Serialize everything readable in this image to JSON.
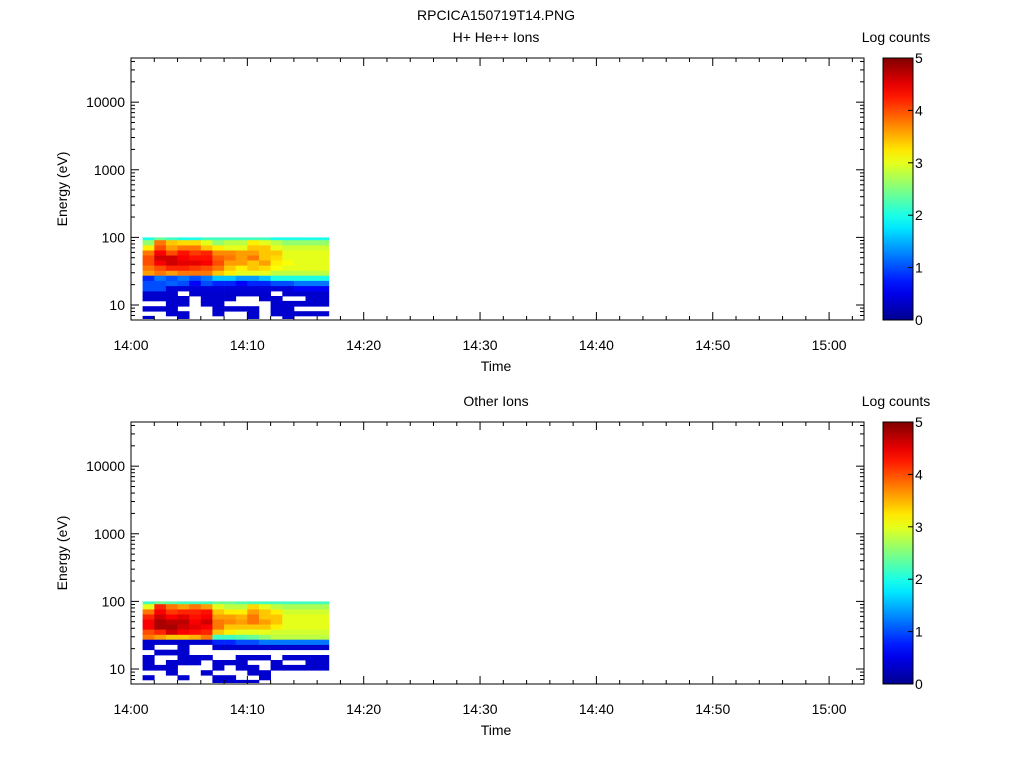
{
  "figure_title": "RPCICA150719T14.PNG",
  "colors": {
    "colormap": [
      "#00008f",
      "#0000ff",
      "#0080ff",
      "#00ffff",
      "#80ff80",
      "#ffff00",
      "#ff8000",
      "#ff0000",
      "#800000"
    ],
    "background": "#ffffff"
  },
  "chart_data": [
    {
      "type": "heatmap",
      "title": "H+ He++ Ions",
      "xlabel": "Time",
      "ylabel": "Energy (eV)",
      "colorbar_label": "Log counts",
      "x_tick_labels": [
        "14:00",
        "14:10",
        "14:20",
        "14:30",
        "14:40",
        "14:50",
        "15:00"
      ],
      "y_tick_labels": [
        "10",
        "100",
        "1000",
        "10000"
      ],
      "colorbar_tick_labels": [
        "0",
        "1",
        "2",
        "3",
        "4",
        "5"
      ],
      "xlim": [
        "14:00",
        "15:03"
      ],
      "ylim": [
        6,
        45000
      ],
      "y_scale": "log",
      "colorbar_range": [
        0,
        5
      ],
      "grid": false,
      "time_bins": [
        "14:01",
        "14:02",
        "14:03",
        "14:04",
        "14:05",
        "14:06",
        "14:07",
        "14:08",
        "14:09",
        "14:10",
        "14:11",
        "14:12",
        "14:13",
        "14:14",
        "14:15",
        "14:16"
      ],
      "energy_bins": [
        6.3,
        6.9,
        8.1,
        9.6,
        11.5,
        13.6,
        16.1,
        19.3,
        23,
        27.5,
        32.5,
        38.8,
        46.2,
        54.6,
        65,
        77,
        92,
        100
      ],
      "log_counts": [
        [
          0.35,
          null,
          null,
          0.35,
          null,
          null,
          null,
          null,
          null,
          0.35,
          null,
          null,
          0.35,
          null,
          null,
          null
        ],
        [
          null,
          null,
          0.35,
          0.35,
          null,
          null,
          0.35,
          null,
          null,
          0.35,
          null,
          0.35,
          0.35,
          0.35,
          0.35,
          0.35
        ],
        [
          0.35,
          0.35,
          0.35,
          null,
          null,
          null,
          0.35,
          0.35,
          0.35,
          0.35,
          null,
          0.35,
          0.35,
          null,
          null,
          null
        ],
        [
          null,
          null,
          0.35,
          0.35,
          null,
          0.35,
          0.35,
          null,
          null,
          null,
          null,
          0.35,
          0.35,
          0.35,
          0.35,
          0.35
        ],
        [
          0.35,
          0.35,
          0.35,
          0.35,
          null,
          0.35,
          0.35,
          0.35,
          null,
          null,
          0.35,
          0.35,
          null,
          null,
          0.35,
          0.35
        ],
        [
          0.35,
          0.35,
          0.35,
          null,
          0.35,
          0.35,
          0.35,
          0.35,
          0.35,
          0.35,
          0.35,
          null,
          0.35,
          0.35,
          0.35,
          0.35
        ],
        [
          1.0,
          1.0,
          0.4,
          0.4,
          0.4,
          0.4,
          0.4,
          0.4,
          0.4,
          0.4,
          0.4,
          0.4,
          0.4,
          0.6,
          0.6,
          0.6
        ],
        [
          1.0,
          1.0,
          1.1,
          1.0,
          0.6,
          1.0,
          0.8,
          0.8,
          0.6,
          0.8,
          0.8,
          1.0,
          1.0,
          1.2,
          1.2,
          1.2
        ],
        [
          0.8,
          1.2,
          1.0,
          1.2,
          1.0,
          1.2,
          1.6,
          1.6,
          1.4,
          1.4,
          1.6,
          2.0,
          2.0,
          2.0,
          2.0,
          2.0
        ],
        [
          3.6,
          3.8,
          3.6,
          3.8,
          3.8,
          3.8,
          3.4,
          3.2,
          3.0,
          3.0,
          3.0,
          2.8,
          2.8,
          2.8,
          2.8,
          2.8
        ],
        [
          3.8,
          4.0,
          4.2,
          4.2,
          4.1,
          4.0,
          3.8,
          3.4,
          3.2,
          3.4,
          3.3,
          3.1,
          3.0,
          3.0,
          3.0,
          3.0
        ],
        [
          4.0,
          4.4,
          4.6,
          4.5,
          4.5,
          4.4,
          4.0,
          3.6,
          3.6,
          3.4,
          3.6,
          3.2,
          3.1,
          3.0,
          3.0,
          3.0
        ],
        [
          4.0,
          4.6,
          4.6,
          4.4,
          4.3,
          4.3,
          3.9,
          3.8,
          3.6,
          3.8,
          3.4,
          3.3,
          3.0,
          3.0,
          3.0,
          3.0
        ],
        [
          3.8,
          4.4,
          4.0,
          4.3,
          4.1,
          4.2,
          3.7,
          3.7,
          3.6,
          3.6,
          3.4,
          3.4,
          3.0,
          3.0,
          3.0,
          3.0
        ],
        [
          3.2,
          4.0,
          3.6,
          3.8,
          3.8,
          3.4,
          3.2,
          3.0,
          3.0,
          3.4,
          3.4,
          3.0,
          2.9,
          2.9,
          2.9,
          2.9
        ],
        [
          2.6,
          3.8,
          3.4,
          3.3,
          3.3,
          3.0,
          2.6,
          2.8,
          2.8,
          3.2,
          3.0,
          2.8,
          2.6,
          2.6,
          2.6,
          2.6
        ],
        [
          2.0,
          2.4,
          2.2,
          2.0,
          2.0,
          2.2,
          2.2,
          2.2,
          2.2,
          2.2,
          2.2,
          2.0,
          2.0,
          2.0,
          2.0,
          2.0
        ]
      ]
    },
    {
      "type": "heatmap",
      "title": "Other Ions",
      "xlabel": "Time",
      "ylabel": "Energy (eV)",
      "colorbar_label": "Log counts",
      "x_tick_labels": [
        "14:00",
        "14:10",
        "14:20",
        "14:30",
        "14:40",
        "14:50",
        "15:00"
      ],
      "y_tick_labels": [
        "10",
        "100",
        "1000",
        "10000"
      ],
      "colorbar_tick_labels": [
        "0",
        "1",
        "2",
        "3",
        "4",
        "5"
      ],
      "xlim": [
        "14:00",
        "15:03"
      ],
      "ylim": [
        6,
        45000
      ],
      "y_scale": "log",
      "colorbar_range": [
        0,
        5
      ],
      "grid": false,
      "time_bins": [
        "14:01",
        "14:02",
        "14:03",
        "14:04",
        "14:05",
        "14:06",
        "14:07",
        "14:08",
        "14:09",
        "14:10",
        "14:11",
        "14:12",
        "14:13",
        "14:14",
        "14:15",
        "14:16"
      ],
      "energy_bins": [
        6.3,
        6.9,
        8.1,
        9.6,
        11.5,
        13.6,
        16.1,
        19.3,
        23,
        27.5,
        32.5,
        38.8,
        46.2,
        54.6,
        65,
        77,
        92,
        100
      ],
      "log_counts": [
        [
          null,
          null,
          null,
          null,
          null,
          null,
          0.35,
          0.35,
          0.35,
          0.35,
          null,
          null,
          null,
          null,
          null,
          null
        ],
        [
          0.35,
          null,
          null,
          0.35,
          null,
          null,
          0.35,
          0.35,
          null,
          null,
          0.35,
          null,
          null,
          null,
          null,
          null
        ],
        [
          null,
          null,
          0.35,
          null,
          null,
          0.35,
          null,
          null,
          null,
          0.35,
          0.35,
          null,
          null,
          null,
          null,
          null
        ],
        [
          0.35,
          0.35,
          0.35,
          null,
          null,
          null,
          0.35,
          null,
          0.35,
          0.35,
          null,
          0.35,
          0.35,
          0.35,
          0.35,
          0.35
        ],
        [
          0.35,
          null,
          0.35,
          0.35,
          0.35,
          null,
          0.35,
          0.35,
          0.35,
          null,
          null,
          0.35,
          null,
          null,
          0.35,
          0.35
        ],
        [
          0.35,
          null,
          null,
          0.35,
          0.35,
          0.35,
          null,
          null,
          0.35,
          0.35,
          0.35,
          null,
          0.35,
          0.35,
          0.35,
          0.35
        ],
        [
          null,
          0.35,
          0.35,
          0.35,
          null,
          null,
          null,
          null,
          null,
          null,
          null,
          null,
          null,
          null,
          null,
          null
        ],
        [
          0.35,
          null,
          null,
          0.35,
          null,
          null,
          0.35,
          0.35,
          0.35,
          0.35,
          0.35,
          0.35,
          0.35,
          0.35,
          0.35,
          0.35
        ],
        [
          0.35,
          0.35,
          0.35,
          0.35,
          0.35,
          0.35,
          0.8,
          0.8,
          1.0,
          1.0,
          1.2,
          1.2,
          1.2,
          1.2,
          1.2,
          1.2
        ],
        [
          3.8,
          3.6,
          3.4,
          3.4,
          3.5,
          3.8,
          2.2,
          2.2,
          2.3,
          2.4,
          2.6,
          2.8,
          2.8,
          2.8,
          2.8,
          2.8
        ],
        [
          4.0,
          4.2,
          4.6,
          4.4,
          4.3,
          4.2,
          3.4,
          3.2,
          3.0,
          3.0,
          3.0,
          2.9,
          2.9,
          2.9,
          2.9,
          2.9
        ],
        [
          4.4,
          4.8,
          4.8,
          4.6,
          4.5,
          4.4,
          3.8,
          3.4,
          3.4,
          3.4,
          3.4,
          3.2,
          3.0,
          3.0,
          3.0,
          3.0
        ],
        [
          4.4,
          4.8,
          4.7,
          4.7,
          4.4,
          4.6,
          3.8,
          3.7,
          3.6,
          3.8,
          3.6,
          3.4,
          3.0,
          3.0,
          3.0,
          3.0
        ],
        [
          4.2,
          4.6,
          4.4,
          4.5,
          4.3,
          4.4,
          3.6,
          3.6,
          3.5,
          3.8,
          3.4,
          3.4,
          3.0,
          3.0,
          3.0,
          3.0
        ],
        [
          3.8,
          4.4,
          4.1,
          4.2,
          4.2,
          4.3,
          3.4,
          3.2,
          3.2,
          3.6,
          3.4,
          3.2,
          2.9,
          2.9,
          2.9,
          2.9
        ],
        [
          3.0,
          4.2,
          3.8,
          3.6,
          3.8,
          3.6,
          3.0,
          2.8,
          2.8,
          3.3,
          3.0,
          2.8,
          2.7,
          2.7,
          2.7,
          2.7
        ],
        [
          2.2,
          2.4,
          2.3,
          2.2,
          2.2,
          2.2,
          2.4,
          2.4,
          2.3,
          2.2,
          2.2,
          2.2,
          2.2,
          2.2,
          2.2,
          2.2
        ]
      ]
    }
  ]
}
